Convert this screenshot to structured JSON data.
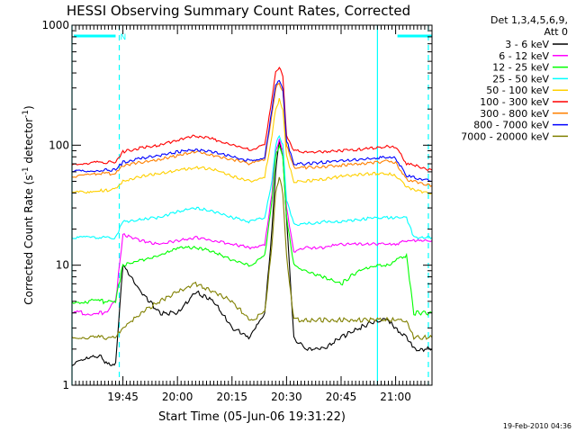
{
  "chart_data": {
    "type": "line",
    "title": "HESSI Observing Summary Count Rates, Corrected",
    "xlabel": "Start Time (05-Jun-06 19:31:22)",
    "ylabel": "Corrected Count Rate (s⁻¹ detector⁻¹)",
    "ylabel_parts": {
      "pre": "Corrected Count Rate (s",
      "sup1": "-1",
      "mid": " detector",
      "sup2": "-1",
      "post": ")"
    },
    "footer_date": "19-Feb-2010 04:36",
    "y_scale": "log",
    "ylim": [
      1,
      1000
    ],
    "xlim": [
      "19:31",
      "21:10"
    ],
    "x_ticks": [
      "19:45",
      "20:00",
      "20:15",
      "20:30",
      "20:45",
      "21:00"
    ],
    "y_ticks": [
      "1",
      "10",
      "100",
      "1000"
    ],
    "legend_title": [
      "Det 1,3,4,5,6,9,",
      "Att 0"
    ],
    "legend_placement": "right",
    "night_flag": "N",
    "night_bars": [
      [
        "19:31",
        "19:43"
      ],
      [
        "21:00",
        "21:10"
      ]
    ],
    "solid_cyan_lines": [
      "19:31",
      "20:55"
    ],
    "dashed_cyan_lines": [
      "19:44",
      "21:09"
    ],
    "x": [
      "19:31",
      "19:39",
      "19:40",
      "19:43",
      "19:45",
      "19:50",
      "19:55",
      "20:00",
      "20:05",
      "20:10",
      "20:15",
      "20:20",
      "20:24",
      "20:26",
      "20:27",
      "20:28",
      "20:29",
      "20:30",
      "20:32",
      "20:35",
      "20:40",
      "20:45",
      "20:50",
      "20:55",
      "20:58",
      "21:00",
      "21:03",
      "21:05",
      "21:10"
    ],
    "series": [
      {
        "name": "3 - 6 keV",
        "color": "#000000",
        "values": [
          1.5,
          1.8,
          1.5,
          1.5,
          10,
          6,
          4,
          4,
          6,
          5,
          3,
          2.5,
          4,
          20,
          60,
          110,
          80,
          25,
          2.5,
          2,
          2,
          2.5,
          3,
          3.5,
          3.5,
          3,
          2.5,
          2,
          2
        ]
      },
      {
        "name": "6 - 12 keV",
        "color": "#ff00ff",
        "values": [
          4,
          4,
          4,
          5,
          18,
          16,
          15,
          16,
          17,
          16,
          15,
          14,
          15,
          40,
          90,
          110,
          90,
          30,
          13,
          14,
          14,
          15,
          15,
          15,
          15,
          15,
          16,
          16,
          16
        ]
      },
      {
        "name": "12 - 25 keV",
        "color": "#00ff00",
        "values": [
          5,
          5,
          5,
          5,
          10,
          11,
          12,
          14,
          14,
          13,
          11,
          10,
          12,
          35,
          80,
          100,
          80,
          25,
          10,
          9,
          8,
          7,
          9,
          10,
          10,
          11,
          12,
          4,
          4
        ]
      },
      {
        "name": "25 - 50 keV",
        "color": "#00ffff",
        "values": [
          17,
          17,
          17,
          17,
          23,
          24,
          25,
          28,
          30,
          28,
          25,
          23,
          25,
          50,
          100,
          120,
          100,
          35,
          22,
          22,
          23,
          23,
          24,
          25,
          25,
          25,
          25,
          17,
          17
        ]
      },
      {
        "name": "50 - 100 keV",
        "color": "#ffd000",
        "values": [
          40,
          42,
          42,
          43,
          50,
          55,
          58,
          62,
          65,
          63,
          55,
          50,
          55,
          120,
          200,
          240,
          200,
          80,
          50,
          50,
          52,
          55,
          57,
          58,
          58,
          56,
          45,
          42,
          40
        ]
      },
      {
        "name": "100 - 300 keV",
        "color": "#ff0000",
        "values": [
          70,
          72,
          72,
          72,
          88,
          95,
          100,
          110,
          120,
          112,
          100,
          92,
          100,
          250,
          400,
          450,
          380,
          120,
          90,
          88,
          88,
          90,
          92,
          96,
          98,
          97,
          70,
          68,
          62
        ]
      },
      {
        "name": "300 - 800 keV",
        "color": "#ff8000",
        "values": [
          55,
          58,
          58,
          58,
          68,
          72,
          76,
          82,
          88,
          82,
          76,
          70,
          76,
          180,
          300,
          330,
          280,
          100,
          65,
          65,
          66,
          68,
          70,
          72,
          74,
          72,
          52,
          50,
          46
        ]
      },
      {
        "name": "800 - 7000 keV",
        "color": "#0000ff",
        "values": [
          60,
          62,
          62,
          62,
          72,
          78,
          82,
          88,
          92,
          88,
          80,
          74,
          80,
          200,
          320,
          340,
          300,
          110,
          70,
          70,
          72,
          74,
          76,
          78,
          80,
          78,
          56,
          54,
          50
        ]
      },
      {
        "name": "7000 - 20000 keV",
        "color": "#808000",
        "values": [
          2.5,
          2.5,
          2.5,
          2.5,
          3,
          4,
          5,
          6,
          7,
          6,
          5,
          3.5,
          4,
          15,
          40,
          55,
          40,
          12,
          3.5,
          3.5,
          3.5,
          3.5,
          3.5,
          3.5,
          3.5,
          3.5,
          3.5,
          2.5,
          2.5
        ]
      }
    ]
  }
}
